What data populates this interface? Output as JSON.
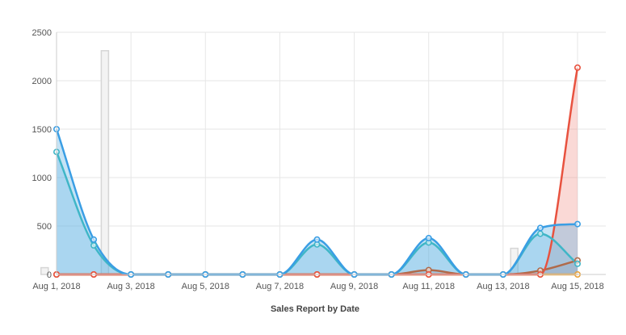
{
  "chart_data": {
    "type": "line",
    "title": "",
    "xlabel": "Sales Report by Date",
    "ylabel": "",
    "ylim": [
      0,
      2500
    ],
    "yticks": [
      0,
      500,
      1000,
      1500,
      2000,
      2500
    ],
    "grid": true,
    "legend": "none",
    "x": [
      "Aug 1, 2018",
      "Aug 2, 2018",
      "Aug 3, 2018",
      "Aug 4, 2018",
      "Aug 5, 2018",
      "Aug 6, 2018",
      "Aug 7, 2018",
      "Aug 8, 2018",
      "Aug 9, 2018",
      "Aug 10, 2018",
      "Aug 11, 2018",
      "Aug 12, 2018",
      "Aug 13, 2018",
      "Aug 14, 2018",
      "Aug 15, 2018"
    ],
    "xtick_labels": [
      "Aug 1, 2018",
      "Aug 3, 2018",
      "Aug 5, 2018",
      "Aug 7, 2018",
      "Aug 9, 2018",
      "Aug 11, 2018",
      "Aug 13, 2018",
      "Aug 15, 2018"
    ],
    "bars": {
      "color": "#d6d6d6",
      "fill": "#f3f3f3",
      "values": [
        70,
        2310,
        0,
        0,
        0,
        0,
        0,
        0,
        0,
        0,
        0,
        0,
        270,
        0,
        0
      ]
    },
    "series": [
      {
        "color": "#3a9ee4",
        "fill": "rgba(90,175,225,0.35)",
        "values": [
          1500,
          360,
          0,
          0,
          0,
          0,
          0,
          360,
          0,
          0,
          375,
          0,
          0,
          480,
          520
        ]
      },
      {
        "color": "#3fb6c7",
        "fill": "rgba(90,175,225,0.25)",
        "values": [
          1265,
          300,
          0,
          0,
          0,
          0,
          0,
          310,
          0,
          0,
          330,
          0,
          0,
          420,
          110
        ]
      },
      {
        "color": "#e8523f",
        "fill": "rgba(240,130,120,0.30)",
        "values": [
          0,
          0,
          0,
          0,
          0,
          0,
          0,
          0,
          0,
          0,
          0,
          0,
          0,
          0,
          2135
        ]
      },
      {
        "color": "#b06a4a",
        "fill": "rgba(190,140,120,0.25)",
        "values": [
          0,
          0,
          0,
          0,
          0,
          0,
          0,
          0,
          0,
          0,
          45,
          0,
          0,
          40,
          145
        ]
      },
      {
        "color": "#e9a23b",
        "fill": "rgba(240,180,90,0.20)",
        "values": [
          0,
          0,
          0,
          0,
          0,
          0,
          0,
          0,
          0,
          0,
          0,
          0,
          0,
          0,
          0
        ]
      }
    ]
  }
}
